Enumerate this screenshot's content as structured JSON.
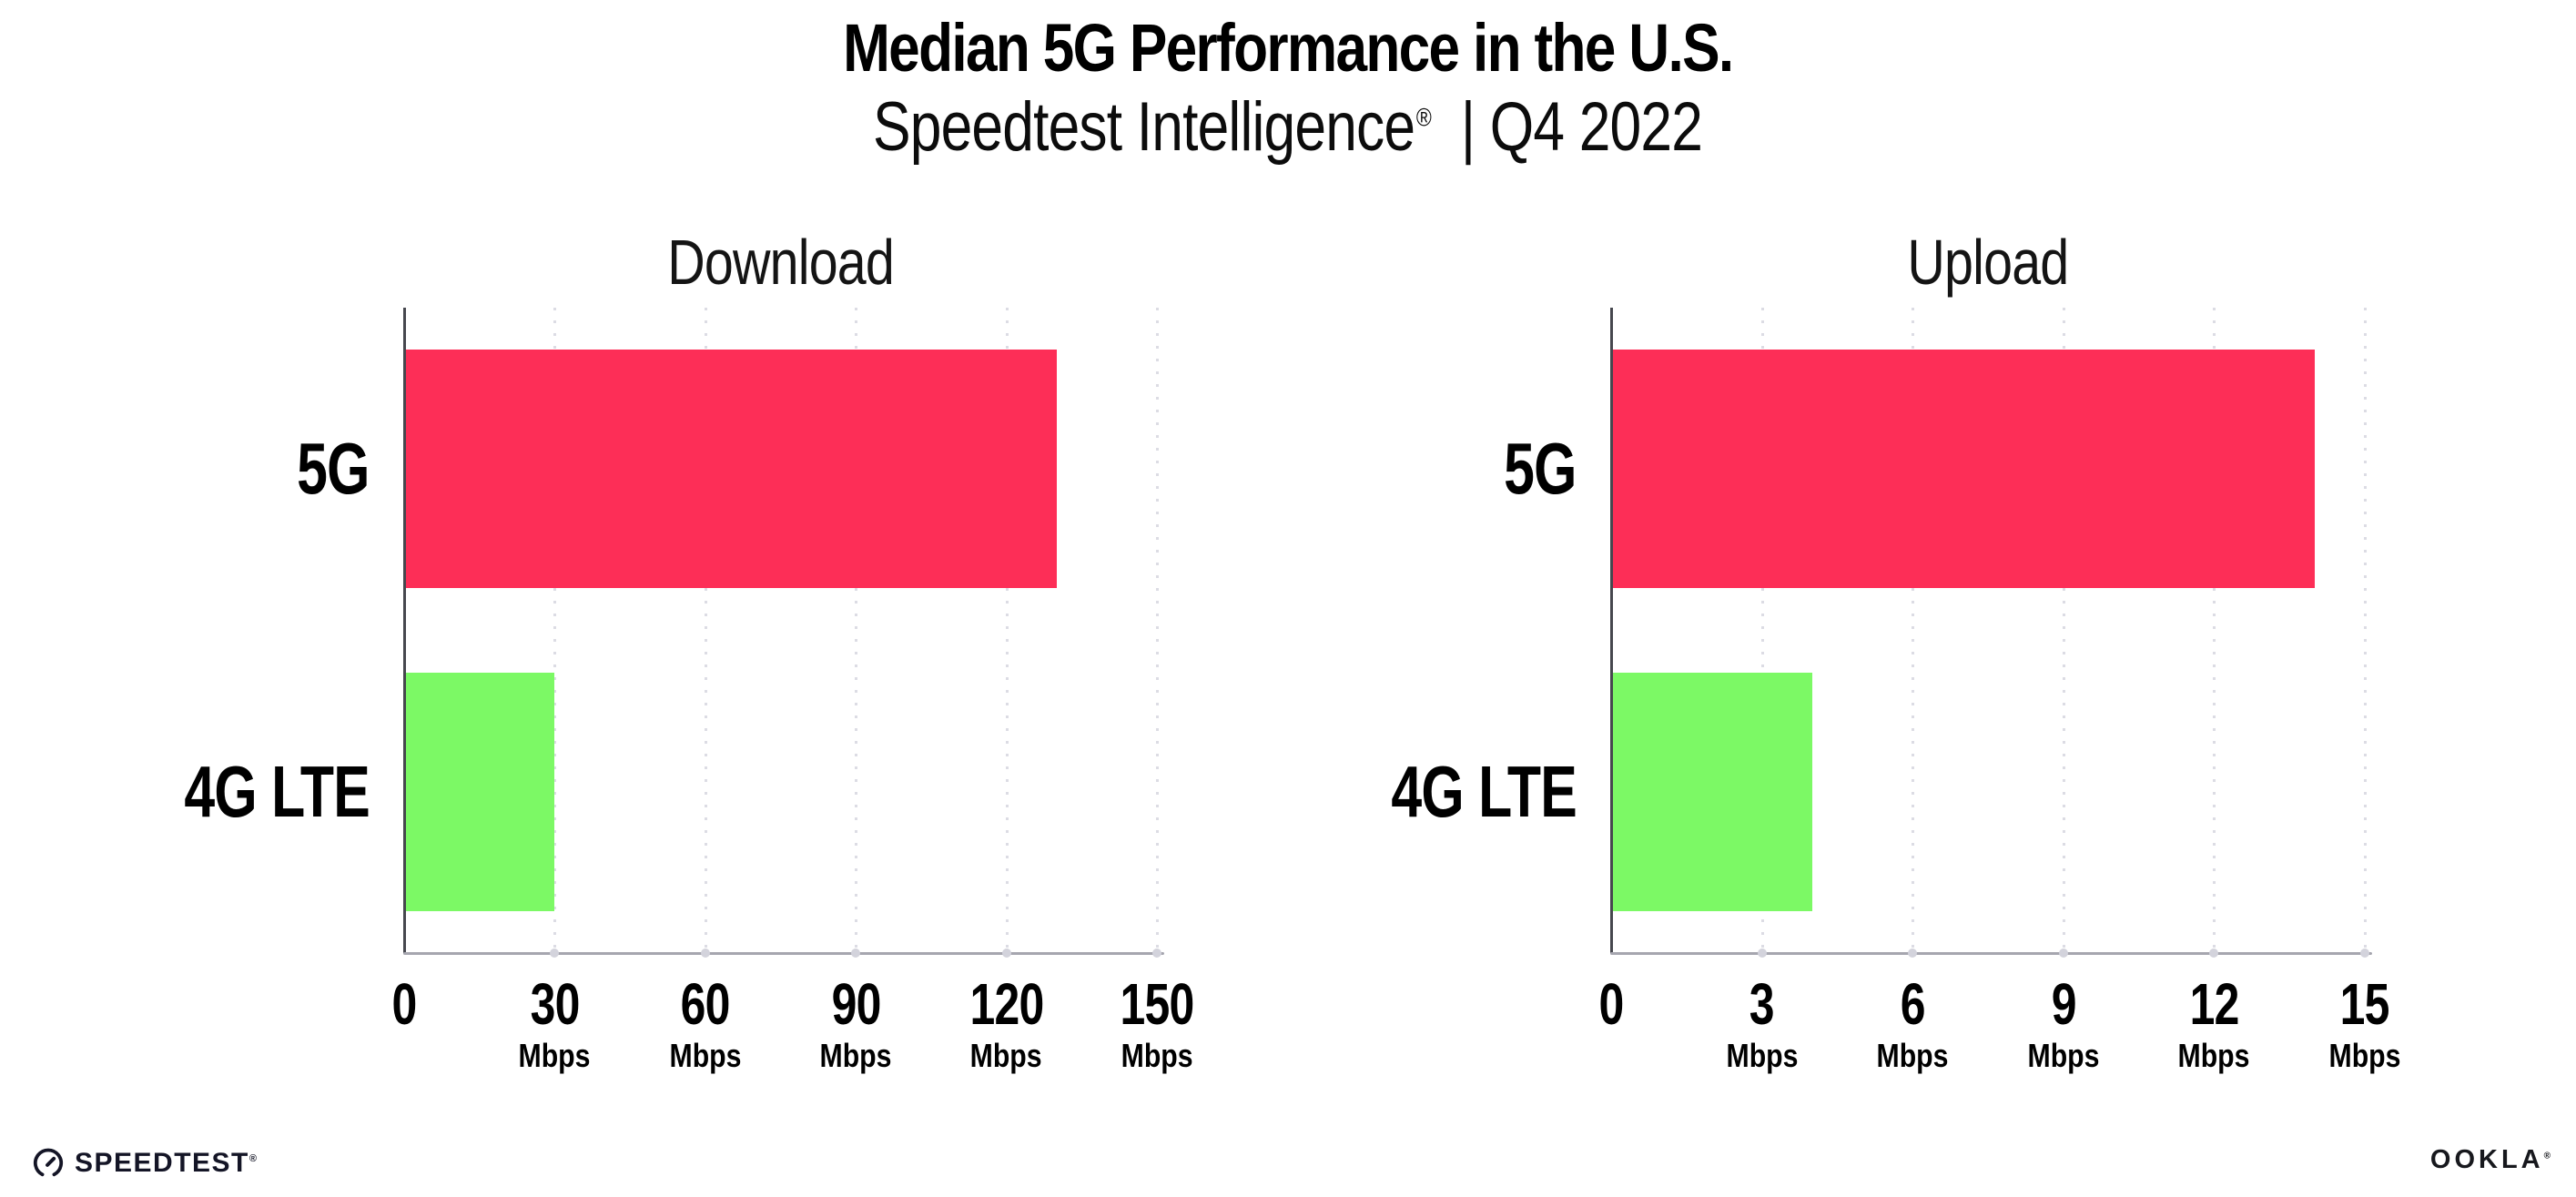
{
  "header": {
    "title": "Median 5G Performance in the U.S.",
    "subtitle_brand": "Speedtest Intelligence",
    "subtitle_reg": "®",
    "subtitle_period": "| Q4 2022"
  },
  "chart_data": [
    {
      "type": "bar",
      "orientation": "horizontal",
      "title": "Download",
      "categories": [
        "5G",
        "4G LTE"
      ],
      "values": [
        130,
        30
      ],
      "unit": "Mbps",
      "xlabel": "",
      "ylabel": "",
      "xlim": [
        0,
        150
      ],
      "xticks": [
        0,
        30,
        60,
        90,
        120,
        150
      ],
      "bar_colors": [
        "#fd2e57",
        "#7cf965"
      ],
      "grid": "vertical-dotted",
      "legend": "none"
    },
    {
      "type": "bar",
      "orientation": "horizontal",
      "title": "Upload",
      "categories": [
        "5G",
        "4G LTE"
      ],
      "values": [
        14,
        4
      ],
      "unit": "Mbps",
      "xlabel": "",
      "ylabel": "",
      "xlim": [
        0,
        15
      ],
      "xticks": [
        0,
        3,
        6,
        9,
        12,
        15
      ],
      "bar_colors": [
        "#fd2e57",
        "#7cf965"
      ],
      "grid": "vertical-dotted",
      "legend": "none"
    }
  ],
  "colors": {
    "bar_5g": "#fd2e57",
    "bar_4g_lte": "#7cf965",
    "gridline": "#dcdce4",
    "x_axis": "#a6a6af",
    "y_axis": "#46474e",
    "text": "#000000",
    "footer_logo": "#141526"
  },
  "icons": {
    "speedtest_logo": "speedtest-gauge-icon",
    "ookla_logo": "ookla-wordmark"
  },
  "footer": {
    "speedtest_label": "SPEEDTEST",
    "speedtest_reg": "®",
    "ookla_label": "OOKLA",
    "ookla_reg": "®"
  }
}
